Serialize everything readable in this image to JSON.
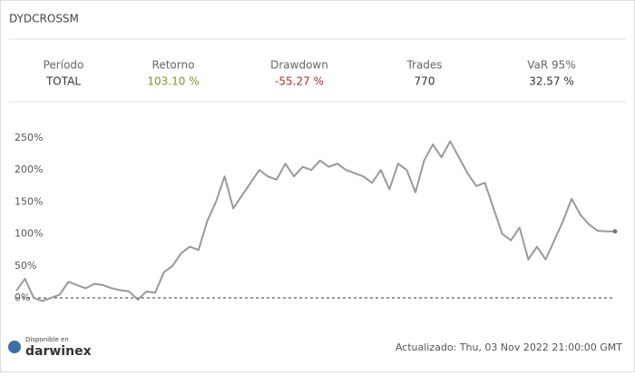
{
  "header": {
    "title": "DYDCROSSM"
  },
  "stats": [
    {
      "label": "Período",
      "value": "TOTAL"
    },
    {
      "label": "Retorno",
      "value": "103.10 %"
    },
    {
      "label": "Drawdown",
      "value": "-55.27 %"
    },
    {
      "label": "Trades",
      "value": "770"
    },
    {
      "label": "VaR 95%",
      "value": "32.57 %"
    }
  ],
  "chart_data": {
    "type": "line",
    "color": "#999999",
    "values": [
      11,
      30,
      0,
      -5,
      0,
      5,
      25,
      20,
      15,
      22,
      20,
      15,
      12,
      10,
      -3,
      10,
      8,
      40,
      50,
      70,
      80,
      75,
      120,
      150,
      190,
      140,
      160,
      180,
      200,
      190,
      185,
      210,
      190,
      205,
      200,
      215,
      205,
      210,
      200,
      195,
      190,
      180,
      200,
      170,
      210,
      200,
      165,
      215,
      240,
      220,
      245,
      220,
      195,
      175,
      180,
      140,
      100,
      90,
      110,
      60,
      80,
      60,
      90,
      120,
      155,
      130,
      115,
      105,
      104,
      104
    ],
    "ylim": [
      -10,
      260
    ],
    "yticks": [
      {
        "value": 0,
        "label": "0%"
      },
      {
        "value": 50,
        "label": "50%"
      },
      {
        "value": 100,
        "label": "100%"
      },
      {
        "value": 150,
        "label": "150%"
      },
      {
        "value": 200,
        "label": "200%"
      },
      {
        "value": 250,
        "label": "250%"
      }
    ]
  },
  "footer": {
    "badge_small": "Disponible en",
    "badge_brand": "darwinex",
    "updated": "Actualizado: Thu, 03 Nov 2022 21:00:00 GMT"
  }
}
